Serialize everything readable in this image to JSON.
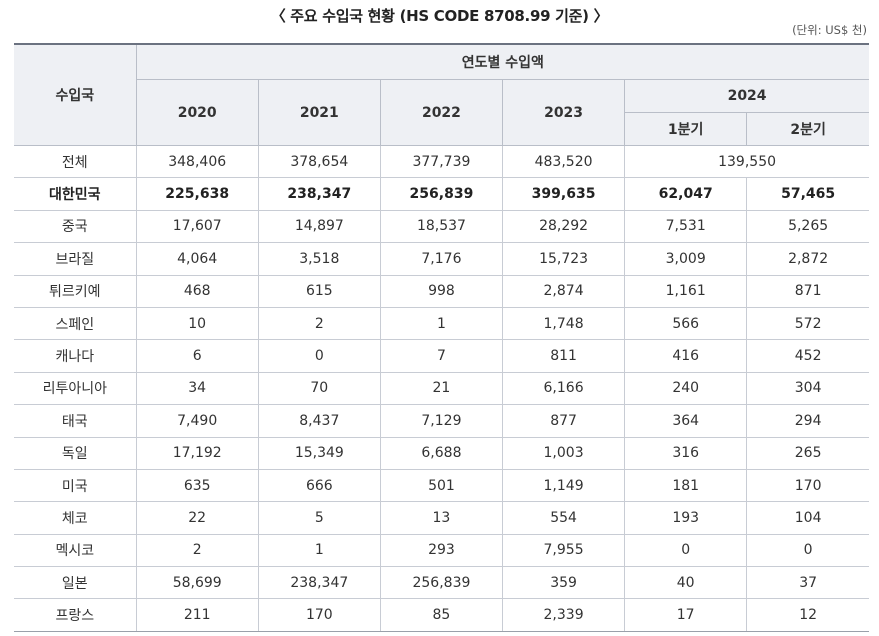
{
  "title": "〈 주요 수입국 현황 (HS CODE 8708.99 기준) 〉",
  "unit": "(단위: US$ 천)",
  "table": {
    "header_country": "수입국",
    "header_group": "연도별 수입액",
    "years": [
      "2020",
      "2021",
      "2022",
      "2023"
    ],
    "year_2024": "2024",
    "quarters": [
      "1분기",
      "2분기"
    ],
    "rows": [
      {
        "country": "전체",
        "values": [
          "348,406",
          "378,654",
          "377,739",
          "483,520"
        ],
        "q_merged": "139,550",
        "bold": false
      },
      {
        "country": "대한민국",
        "values": [
          "225,638",
          "238,347",
          "256,839",
          "399,635"
        ],
        "q1": "62,047",
        "q2": "57,465",
        "bold": true
      },
      {
        "country": "중국",
        "values": [
          "17,607",
          "14,897",
          "18,537",
          "28,292"
        ],
        "q1": "7,531",
        "q2": "5,265",
        "bold": false
      },
      {
        "country": "브라질",
        "values": [
          "4,064",
          "3,518",
          "7,176",
          "15,723"
        ],
        "q1": "3,009",
        "q2": "2,872",
        "bold": false
      },
      {
        "country": "튀르키예",
        "values": [
          "468",
          "615",
          "998",
          "2,874"
        ],
        "q1": "1,161",
        "q2": "871",
        "bold": false
      },
      {
        "country": "스페인",
        "values": [
          "10",
          "2",
          "1",
          "1,748"
        ],
        "q1": "566",
        "q2": "572",
        "bold": false
      },
      {
        "country": "캐나다",
        "values": [
          "6",
          "0",
          "7",
          "811"
        ],
        "q1": "416",
        "q2": "452",
        "bold": false
      },
      {
        "country": "리투아니아",
        "values": [
          "34",
          "70",
          "21",
          "6,166"
        ],
        "q1": "240",
        "q2": "304",
        "bold": false
      },
      {
        "country": "태국",
        "values": [
          "7,490",
          "8,437",
          "7,129",
          "877"
        ],
        "q1": "364",
        "q2": "294",
        "bold": false
      },
      {
        "country": "독일",
        "values": [
          "17,192",
          "15,349",
          "6,688",
          "1,003"
        ],
        "q1": "316",
        "q2": "265",
        "bold": false
      },
      {
        "country": "미국",
        "values": [
          "635",
          "666",
          "501",
          "1,149"
        ],
        "q1": "181",
        "q2": "170",
        "bold": false
      },
      {
        "country": "체코",
        "values": [
          "22",
          "5",
          "13",
          "554"
        ],
        "q1": "193",
        "q2": "104",
        "bold": false
      },
      {
        "country": "멕시코",
        "values": [
          "2",
          "1",
          "293",
          "7,955"
        ],
        "q1": "0",
        "q2": "0",
        "bold": false
      },
      {
        "country": "일본",
        "values": [
          "58,699",
          "238,347",
          "256,839",
          "359"
        ],
        "q1": "40",
        "q2": "37",
        "bold": false
      },
      {
        "country": "프랑스",
        "values": [
          "211",
          "170",
          "85",
          "2,339"
        ],
        "q1": "17",
        "q2": "12",
        "bold": false
      }
    ]
  }
}
